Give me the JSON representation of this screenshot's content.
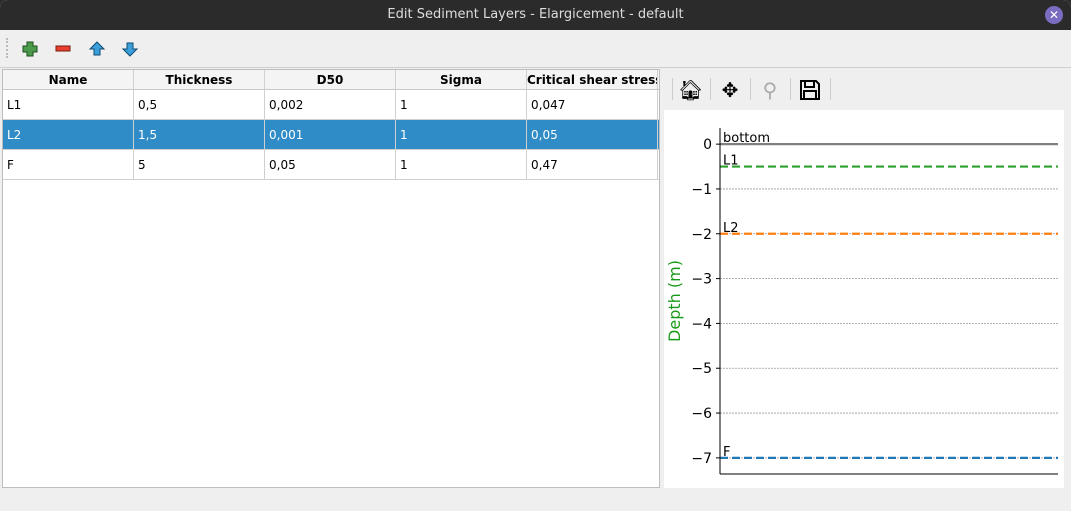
{
  "window": {
    "title": "Edit Sediment Layers - Elargicement - default"
  },
  "toolbar": {
    "icons": [
      "add-layer-icon",
      "remove-layer-icon",
      "move-up-icon",
      "move-down-icon"
    ]
  },
  "table": {
    "columns": [
      "Name",
      "Thickness",
      "D50",
      "Sigma",
      "Critical shear stress"
    ],
    "rows": [
      [
        "L1",
        "0,5",
        "0,002",
        "1",
        "0,047"
      ],
      [
        "L2",
        "1,5",
        "0,001",
        "1",
        "0,05"
      ],
      [
        "F",
        "5",
        "0,05",
        "1",
        "0,47"
      ]
    ],
    "selected_row": 1,
    "selection_color": "#308cc6"
  },
  "plot_toolbar": {
    "icons": [
      "home-icon",
      "pan-icon",
      "zoom-icon",
      "save-icon"
    ]
  },
  "chart_data": {
    "type": "line",
    "ylabel": "Depth (m)",
    "ylim": [
      -7.36,
      0.36
    ],
    "yticks": [
      "0",
      "−1",
      "−2",
      "−3",
      "−4",
      "−5",
      "−6",
      "−7"
    ],
    "ytick_values": [
      0,
      -1,
      -2,
      -3,
      -4,
      -5,
      -6,
      -7
    ],
    "grid": "horizontal dotted",
    "series": [
      {
        "name": "bottom",
        "y": 0,
        "color": "#808080",
        "style": "solid"
      },
      {
        "name": "L1",
        "y": -0.5,
        "color": "#2ca02c",
        "style": "dashed"
      },
      {
        "name": "L2",
        "y": -2,
        "color": "#ff7f0e",
        "style": "dashed"
      },
      {
        "name": "F",
        "y": -7,
        "color": "#1f77b4",
        "style": "dashed"
      }
    ]
  }
}
